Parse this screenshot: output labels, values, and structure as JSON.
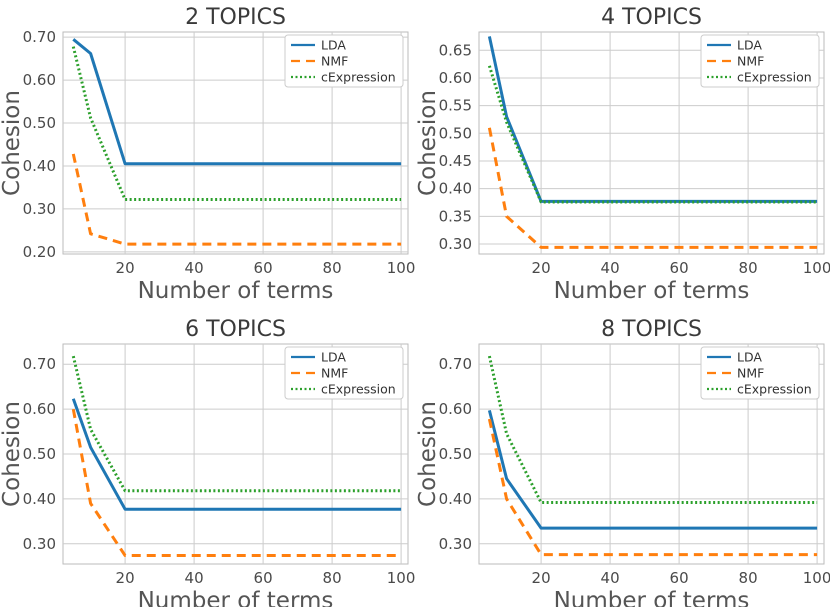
{
  "chart_data": [
    {
      "type": "line",
      "title": "2 TOPICS",
      "xlabel": "Number of terms",
      "ylabel": "Cohesion",
      "x": [
        5,
        10,
        20,
        50,
        100
      ],
      "xticks": [
        20,
        40,
        60,
        80,
        100
      ],
      "xlim": [
        2,
        102
      ],
      "ylim": [
        0.195,
        0.712
      ],
      "yticks": [
        0.2,
        0.3,
        0.4,
        0.5,
        0.6,
        0.7
      ],
      "ytick_labels": [
        "0.20",
        "0.30",
        "0.40",
        "0.50",
        "0.60",
        "0.70"
      ],
      "grid": true,
      "legend": "top-right",
      "series": [
        {
          "name": "LDA",
          "values": [
            0.695,
            0.662,
            0.405,
            0.405,
            0.405
          ]
        },
        {
          "name": "NMF",
          "values": [
            0.428,
            0.242,
            0.218,
            0.218,
            0.218
          ]
        },
        {
          "name": "cExpression",
          "values": [
            0.678,
            0.512,
            0.322,
            0.322,
            0.322
          ]
        }
      ]
    },
    {
      "type": "line",
      "title": "4 TOPICS",
      "xlabel": "Number of terms",
      "ylabel": "Cohesion",
      "x": [
        5,
        10,
        20,
        50,
        100
      ],
      "xticks": [
        20,
        40,
        60,
        80,
        100
      ],
      "xlim": [
        2,
        102
      ],
      "ylim": [
        0.282,
        0.683
      ],
      "yticks": [
        0.3,
        0.35,
        0.4,
        0.45,
        0.5,
        0.55,
        0.6,
        0.65
      ],
      "ytick_labels": [
        "0.30",
        "0.35",
        "0.40",
        "0.45",
        "0.50",
        "0.55",
        "0.60",
        "0.65"
      ],
      "grid": true,
      "legend": "top-right",
      "series": [
        {
          "name": "LDA",
          "values": [
            0.675,
            0.53,
            0.377,
            0.377,
            0.377
          ]
        },
        {
          "name": "NMF",
          "values": [
            0.51,
            0.35,
            0.294,
            0.294,
            0.294
          ]
        },
        {
          "name": "cExpression",
          "values": [
            0.622,
            0.52,
            0.376,
            0.376,
            0.376
          ]
        }
      ]
    },
    {
      "type": "line",
      "title": "6 TOPICS",
      "xlabel": "Number of terms",
      "ylabel": "Cohesion",
      "x": [
        5,
        10,
        20,
        50,
        100
      ],
      "xticks": [
        20,
        40,
        60,
        80,
        100
      ],
      "xlim": [
        2,
        102
      ],
      "ylim": [
        0.255,
        0.745
      ],
      "yticks": [
        0.3,
        0.4,
        0.5,
        0.6,
        0.7
      ],
      "ytick_labels": [
        "0.30",
        "0.40",
        "0.50",
        "0.60",
        "0.70"
      ],
      "grid": true,
      "legend": "top-right",
      "series": [
        {
          "name": "LDA",
          "values": [
            0.623,
            0.515,
            0.377,
            0.377,
            0.377
          ]
        },
        {
          "name": "NMF",
          "values": [
            0.6,
            0.39,
            0.274,
            0.274,
            0.274
          ]
        },
        {
          "name": "cExpression",
          "values": [
            0.718,
            0.555,
            0.418,
            0.418,
            0.418
          ]
        }
      ]
    },
    {
      "type": "line",
      "title": "8 TOPICS",
      "xlabel": "Number of terms",
      "ylabel": "Cohesion",
      "x": [
        5,
        10,
        20,
        50,
        100
      ],
      "xticks": [
        20,
        40,
        60,
        80,
        100
      ],
      "xlim": [
        2,
        102
      ],
      "ylim": [
        0.255,
        0.745
      ],
      "yticks": [
        0.3,
        0.4,
        0.5,
        0.6,
        0.7
      ],
      "ytick_labels": [
        "0.30",
        "0.40",
        "0.50",
        "0.60",
        "0.70"
      ],
      "grid": true,
      "legend": "top-right",
      "series": [
        {
          "name": "LDA",
          "values": [
            0.597,
            0.445,
            0.335,
            0.335,
            0.335
          ]
        },
        {
          "name": "NMF",
          "values": [
            0.578,
            0.4,
            0.276,
            0.276,
            0.276
          ]
        },
        {
          "name": "cExpression",
          "values": [
            0.718,
            0.545,
            0.392,
            0.392,
            0.392
          ]
        }
      ]
    }
  ],
  "styles": {
    "LDA": {
      "color": "#1f77b4",
      "dash": ""
    },
    "NMF": {
      "color": "#ff7f0e",
      "dash": "9,6"
    },
    "cExpression": {
      "color": "#2ca02c",
      "dash": "2,2.5"
    }
  }
}
